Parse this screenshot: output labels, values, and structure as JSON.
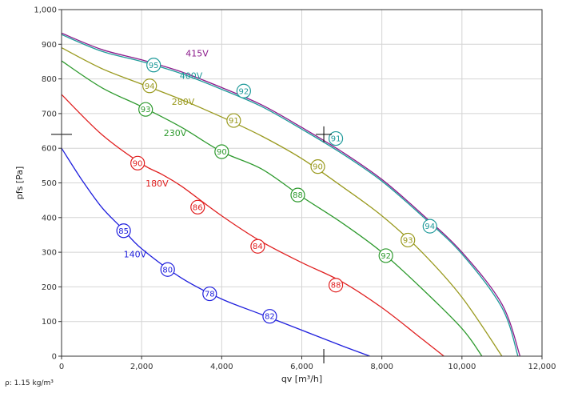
{
  "chart_data": {
    "type": "line",
    "xlabel": "qv [m³/h]",
    "ylabel": "pfs [Pa]",
    "xlim": [
      0,
      12000
    ],
    "ylim": [
      0,
      1000
    ],
    "x_ticks": [
      0,
      2000,
      4000,
      6000,
      8000,
      10000,
      12000
    ],
    "x_tick_labels": [
      "0",
      "2,000",
      "4,000",
      "6,000",
      "8,000",
      "10,000",
      "12,000"
    ],
    "y_ticks": [
      0,
      100,
      200,
      300,
      400,
      500,
      600,
      700,
      800,
      900,
      1000
    ],
    "y_tick_labels": [
      "0",
      "100",
      "200",
      "300",
      "400",
      "500",
      "600",
      "700",
      "800",
      "900",
      "1,000"
    ],
    "grid": true,
    "series": [
      {
        "name": "415V",
        "color": "#8b1a8b",
        "points": [
          [
            0,
            932
          ],
          [
            1000,
            885
          ],
          [
            2000,
            855
          ],
          [
            3000,
            820
          ],
          [
            4000,
            775
          ],
          [
            5000,
            725
          ],
          [
            6000,
            660
          ],
          [
            7000,
            590
          ],
          [
            8000,
            510
          ],
          [
            9000,
            410
          ],
          [
            10000,
            300
          ],
          [
            11000,
            150
          ],
          [
            11450,
            0
          ]
        ],
        "markers": []
      },
      {
        "name": "400V",
        "color": "#1f9a9a",
        "points": [
          [
            0,
            928
          ],
          [
            1000,
            880
          ],
          [
            2000,
            850
          ],
          [
            3000,
            815
          ],
          [
            4000,
            770
          ],
          [
            5000,
            720
          ],
          [
            6000,
            655
          ],
          [
            7000,
            585
          ],
          [
            8000,
            505
          ],
          [
            9000,
            405
          ],
          [
            10000,
            295
          ],
          [
            11000,
            140
          ],
          [
            11400,
            0
          ]
        ],
        "markers": [
          {
            "x": 2300,
            "y": 840,
            "label": "95"
          },
          {
            "x": 4550,
            "y": 765,
            "label": "92"
          },
          {
            "x": 6850,
            "y": 628,
            "label": "91"
          },
          {
            "x": 9200,
            "y": 375,
            "label": "94"
          }
        ]
      },
      {
        "name": "280V",
        "color": "#9a9a1f",
        "points": [
          [
            0,
            890
          ],
          [
            1000,
            830
          ],
          [
            2000,
            785
          ],
          [
            3000,
            740
          ],
          [
            4000,
            690
          ],
          [
            5000,
            635
          ],
          [
            6000,
            570
          ],
          [
            7000,
            490
          ],
          [
            8000,
            405
          ],
          [
            9000,
            300
          ],
          [
            10000,
            170
          ],
          [
            11000,
            0
          ]
        ],
        "markers": [
          {
            "x": 2200,
            "y": 780,
            "label": "94"
          },
          {
            "x": 4300,
            "y": 680,
            "label": "91"
          },
          {
            "x": 6400,
            "y": 547,
            "label": "90"
          },
          {
            "x": 8650,
            "y": 335,
            "label": "93"
          }
        ]
      },
      {
        "name": "230V",
        "color": "#2e9a2e",
        "points": [
          [
            0,
            852
          ],
          [
            1000,
            775
          ],
          [
            2000,
            720
          ],
          [
            3000,
            660
          ],
          [
            4000,
            590
          ],
          [
            5000,
            540
          ],
          [
            6000,
            460
          ],
          [
            7000,
            385
          ],
          [
            8000,
            300
          ],
          [
            9000,
            195
          ],
          [
            10000,
            80
          ],
          [
            10500,
            0
          ]
        ],
        "markers": [
          {
            "x": 2100,
            "y": 712,
            "label": "93"
          },
          {
            "x": 4000,
            "y": 590,
            "label": "90"
          },
          {
            "x": 5900,
            "y": 465,
            "label": "88"
          },
          {
            "x": 8100,
            "y": 290,
            "label": "92"
          }
        ]
      },
      {
        "name": "180V",
        "color": "#e02020",
        "points": [
          [
            0,
            755
          ],
          [
            1000,
            640
          ],
          [
            2000,
            555
          ],
          [
            2500,
            525
          ],
          [
            3000,
            490
          ],
          [
            4000,
            405
          ],
          [
            5000,
            330
          ],
          [
            6000,
            270
          ],
          [
            7000,
            215
          ],
          [
            8000,
            140
          ],
          [
            9000,
            50
          ],
          [
            9550,
            0
          ]
        ],
        "markers": [
          {
            "x": 1900,
            "y": 557,
            "label": "90"
          },
          {
            "x": 3400,
            "y": 430,
            "label": "86"
          },
          {
            "x": 4900,
            "y": 317,
            "label": "84"
          },
          {
            "x": 6850,
            "y": 205,
            "label": "88"
          }
        ]
      },
      {
        "name": "140V",
        "color": "#1f1fdd",
        "points": [
          [
            0,
            600
          ],
          [
            500,
            510
          ],
          [
            1000,
            430
          ],
          [
            1500,
            370
          ],
          [
            2000,
            310
          ],
          [
            3000,
            225
          ],
          [
            4000,
            165
          ],
          [
            5000,
            120
          ],
          [
            6000,
            75
          ],
          [
            7000,
            30
          ],
          [
            7700,
            0
          ]
        ],
        "markers": [
          {
            "x": 1550,
            "y": 362,
            "label": "85"
          },
          {
            "x": 2650,
            "y": 250,
            "label": "80"
          },
          {
            "x": 3700,
            "y": 180,
            "label": "78"
          },
          {
            "x": 5200,
            "y": 115,
            "label": "82"
          }
        ]
      }
    ],
    "series_labels": [
      {
        "text": "415V",
        "x": 3100,
        "y": 865,
        "color": "#8b1a8b"
      },
      {
        "text": "400V",
        "x": 2950,
        "y": 800,
        "color": "#1f9a9a"
      },
      {
        "text": "280V",
        "x": 2750,
        "y": 725,
        "color": "#9a9a1f"
      },
      {
        "text": "230V",
        "x": 2550,
        "y": 635,
        "color": "#2e9a2e"
      },
      {
        "text": "180V",
        "x": 2100,
        "y": 490,
        "color": "#e02020"
      },
      {
        "text": "140V",
        "x": 1550,
        "y": 285,
        "color": "#1f1fdd"
      }
    ],
    "crosshair": {
      "x": 6550,
      "y": 640
    },
    "footnote": "ρ: 1.15 kg/m³"
  }
}
